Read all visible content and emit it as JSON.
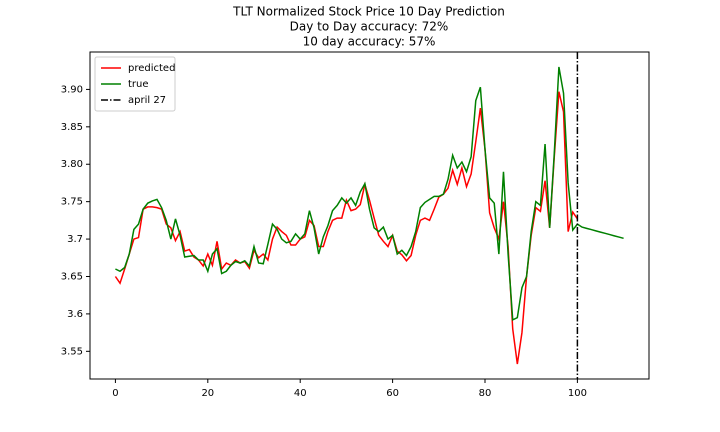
{
  "chart_data": {
    "type": "line",
    "title": "TLT Normalized Stock Price 10 Day Prediction",
    "subtitle": [
      "Day to Day accuracy: 72%",
      "10 day accuracy: 57%"
    ],
    "x": [
      0,
      1,
      2,
      3,
      4,
      5,
      6,
      7,
      8,
      9,
      10,
      11,
      12,
      13,
      14,
      15,
      16,
      17,
      18,
      19,
      20,
      21,
      22,
      23,
      24,
      25,
      26,
      27,
      28,
      29,
      30,
      31,
      32,
      33,
      34,
      35,
      36,
      37,
      38,
      39,
      40,
      41,
      42,
      43,
      44,
      45,
      46,
      47,
      48,
      49,
      50,
      51,
      52,
      53,
      54,
      55,
      56,
      57,
      58,
      59,
      60,
      61,
      62,
      63,
      64,
      65,
      66,
      67,
      68,
      69,
      70,
      71,
      72,
      73,
      74,
      75,
      76,
      77,
      78,
      79,
      80,
      81,
      82,
      83,
      84,
      85,
      86,
      87,
      88,
      89,
      90,
      91,
      92,
      93,
      94,
      95,
      96,
      97,
      98,
      99,
      100,
      101,
      102,
      103,
      104,
      105,
      106,
      107,
      108,
      109,
      110
    ],
    "series": [
      {
        "name": "predicted",
        "color": "#ff0000",
        "values": [
          3.65,
          3.641,
          3.66,
          3.68,
          3.7,
          3.702,
          3.74,
          3.743,
          3.743,
          3.742,
          3.74,
          3.72,
          3.715,
          3.698,
          3.71,
          3.684,
          3.686,
          3.676,
          3.672,
          3.664,
          3.68,
          3.665,
          3.697,
          3.66,
          3.668,
          3.665,
          3.672,
          3.668,
          3.67,
          3.661,
          3.685,
          3.675,
          3.68,
          3.672,
          3.7,
          3.716,
          3.71,
          3.705,
          3.692,
          3.692,
          3.7,
          3.703,
          3.725,
          3.718,
          3.69,
          3.69,
          3.71,
          3.725,
          3.728,
          3.728,
          3.752,
          3.738,
          3.74,
          3.746,
          3.773,
          3.752,
          3.728,
          3.705,
          3.697,
          3.69,
          3.705,
          3.684,
          3.679,
          3.671,
          3.678,
          3.705,
          3.725,
          3.728,
          3.725,
          3.74,
          3.756,
          3.76,
          3.768,
          3.792,
          3.773,
          3.795,
          3.77,
          3.787,
          3.83,
          3.875,
          3.82,
          3.735,
          3.715,
          3.7,
          3.75,
          3.69,
          3.58,
          3.533,
          3.575,
          3.65,
          3.705,
          3.742,
          3.737,
          3.778,
          3.715,
          3.81,
          3.897,
          3.87,
          3.71,
          3.736,
          3.727,
          null,
          null,
          null,
          null,
          null,
          null,
          null,
          null,
          null,
          null
        ]
      },
      {
        "name": "true",
        "color": "#008000",
        "values": [
          3.66,
          3.657,
          3.662,
          3.68,
          3.713,
          3.72,
          3.74,
          3.748,
          3.751,
          3.753,
          3.742,
          3.725,
          3.7,
          3.727,
          3.705,
          3.676,
          3.677,
          3.678,
          3.672,
          3.672,
          3.657,
          3.68,
          3.687,
          3.654,
          3.657,
          3.665,
          3.67,
          3.668,
          3.671,
          3.664,
          3.69,
          3.668,
          3.667,
          3.693,
          3.72,
          3.713,
          3.7,
          3.695,
          3.697,
          3.707,
          3.7,
          3.707,
          3.738,
          3.715,
          3.68,
          3.703,
          3.718,
          3.738,
          3.745,
          3.755,
          3.748,
          3.755,
          3.745,
          3.763,
          3.774,
          3.74,
          3.715,
          3.71,
          3.716,
          3.7,
          3.705,
          3.68,
          3.685,
          3.678,
          3.69,
          3.71,
          3.742,
          3.749,
          3.753,
          3.757,
          3.757,
          3.76,
          3.78,
          3.812,
          3.795,
          3.803,
          3.79,
          3.81,
          3.885,
          3.903,
          3.82,
          3.755,
          3.748,
          3.68,
          3.79,
          3.68,
          3.592,
          3.595,
          3.635,
          3.65,
          3.71,
          3.75,
          3.745,
          3.827,
          3.715,
          3.815,
          3.93,
          3.895,
          3.775,
          3.712,
          3.72,
          3.716,
          3.7143,
          3.7127,
          3.711,
          3.7093,
          3.7077,
          3.706,
          3.7043,
          3.7027,
          3.701
        ]
      }
    ],
    "vline": {
      "x": 100,
      "label": "april 27",
      "color": "#000000"
    },
    "xlim": [
      -5.5,
      115.5
    ],
    "xticks": [
      0,
      20,
      40,
      60,
      80,
      100
    ],
    "ylim": [
      3.513,
      3.95
    ],
    "yticks": [
      3.55,
      3.6,
      3.65,
      3.7,
      3.75,
      {
        "value": 3.8,
        "label": "3.80"
      },
      3.85,
      {
        "value": 3.9,
        "label": "3.90"
      }
    ],
    "grid": false,
    "legend": "upper left"
  }
}
